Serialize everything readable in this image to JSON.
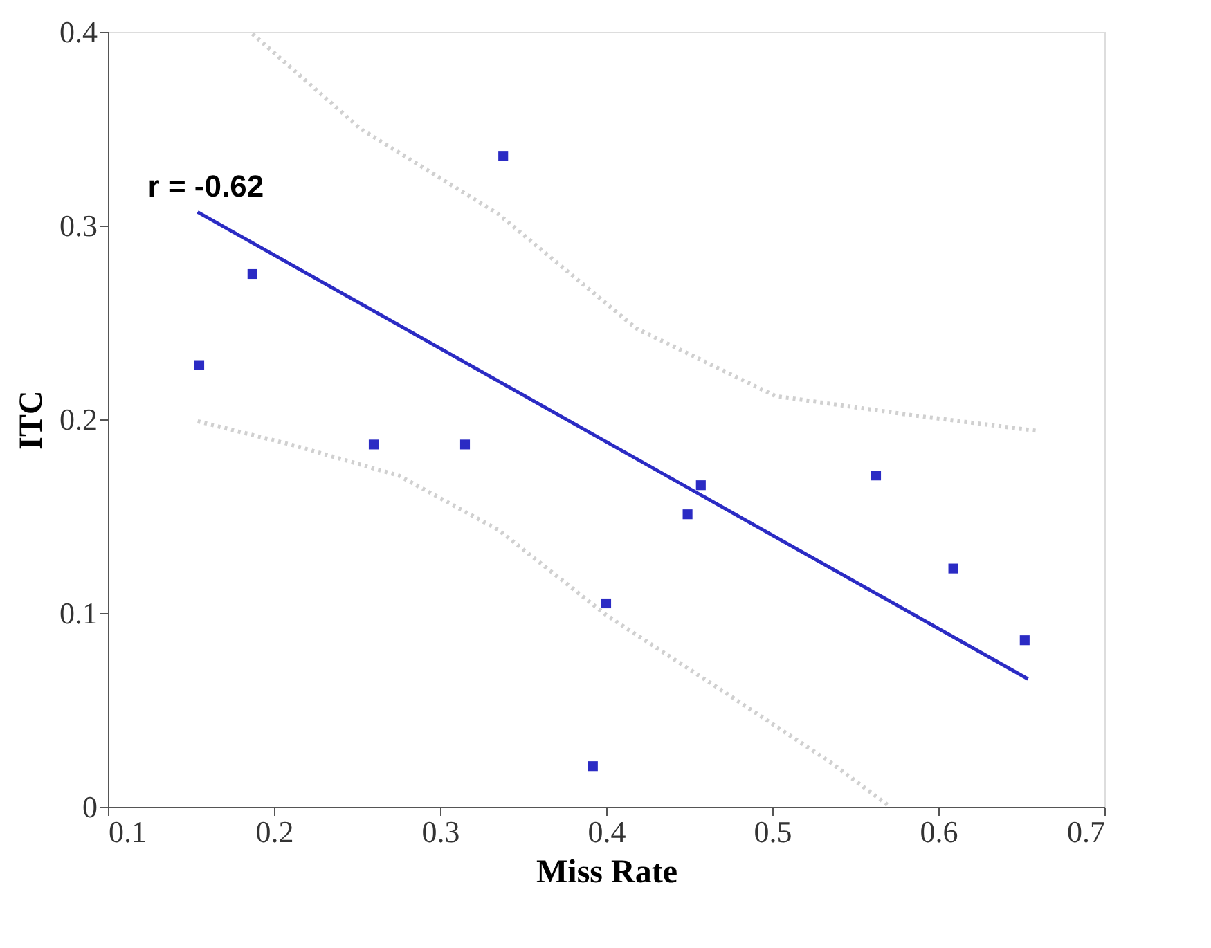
{
  "chart_data": {
    "type": "scatter",
    "xlabel": "Miss Rate",
    "ylabel": "ITC",
    "xlim": [
      0.1,
      0.7
    ],
    "xticks": [
      0.1,
      0.2,
      0.3,
      0.4,
      0.5,
      0.6,
      0.7
    ],
    "ylim": [
      0,
      0.4
    ],
    "yticks": [
      0,
      0.1,
      0.2,
      0.3,
      0.4
    ],
    "grid": false,
    "annotations": [
      "r = -0.62"
    ],
    "series": [
      {
        "type": "line",
        "color": "#d0d0d0",
        "line_style": "dotted",
        "marker": "none",
        "x": [
          0.187,
          0.252,
          0.335,
          0.418,
          0.502,
          0.585,
          0.66
        ],
        "values": [
          0.399,
          0.35,
          0.306,
          0.247,
          0.212,
          0.202,
          0.194
        ]
      },
      {
        "type": "line",
        "color": "#d0d0d0",
        "line_style": "dotted",
        "marker": "none",
        "x": [
          0.154,
          0.21,
          0.275,
          0.335,
          0.4,
          0.468,
          0.535,
          0.571
        ],
        "values": [
          0.199,
          0.187,
          0.171,
          0.143,
          0.099,
          0.061,
          0.023,
          0.0
        ]
      },
      {
        "type": "line",
        "color": "#2b2bc4",
        "line_style": "solid",
        "marker": "none",
        "x": [
          0.154,
          0.654
        ],
        "values": [
          0.307,
          0.066
        ]
      },
      {
        "color": "#2b2bc4",
        "marker": "square",
        "x": [
          0.155,
          0.187,
          0.26,
          0.315,
          0.338,
          0.392,
          0.4,
          0.449,
          0.457,
          0.5625,
          0.609,
          0.652
        ],
        "values": [
          0.228,
          0.275,
          0.187,
          0.187,
          0.336,
          0.021,
          0.105,
          0.151,
          0.166,
          0.171,
          0.123,
          0.086
        ]
      }
    ]
  }
}
